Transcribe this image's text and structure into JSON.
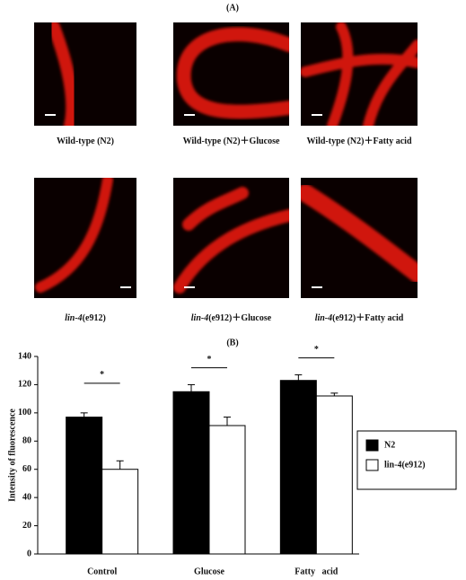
{
  "panel_a": {
    "label": "(A)",
    "images": [
      {
        "text": "Wild-type (N2)"
      },
      {
        "text": "Wild-type (N2)＋Glucose"
      },
      {
        "text": "Wild-type (N2)＋Fatty acid"
      },
      {
        "italic": "lin-4",
        "text": "(e912)"
      },
      {
        "italic": "lin-4",
        "text": "(e912)＋Glucose"
      },
      {
        "italic": "lin-4",
        "text": "(e912)＋Fatty acid"
      }
    ]
  },
  "chart_data": {
    "type": "bar",
    "label": "(B)",
    "y_label": "Intensity of fluorescence",
    "categories": [
      "Control",
      "Glucose",
      "Fatty   acid"
    ],
    "series": [
      {
        "name": "N2",
        "color": "#000000",
        "values": [
          97,
          115,
          123
        ],
        "errors": [
          3,
          5,
          4
        ]
      },
      {
        "name": "lin-4(e912)",
        "color": "#ffffff",
        "values": [
          60,
          91,
          112
        ],
        "errors": [
          6,
          6,
          2
        ]
      }
    ],
    "annotations": [
      {
        "label": "*",
        "value": 121
      },
      {
        "label": "*",
        "value": 132
      },
      {
        "label": "*",
        "value": 139
      }
    ],
    "ylim": [
      0,
      140
    ],
    "yticks": [
      0,
      20,
      40,
      60,
      80,
      100,
      120,
      140
    ],
    "legend": "right"
  }
}
